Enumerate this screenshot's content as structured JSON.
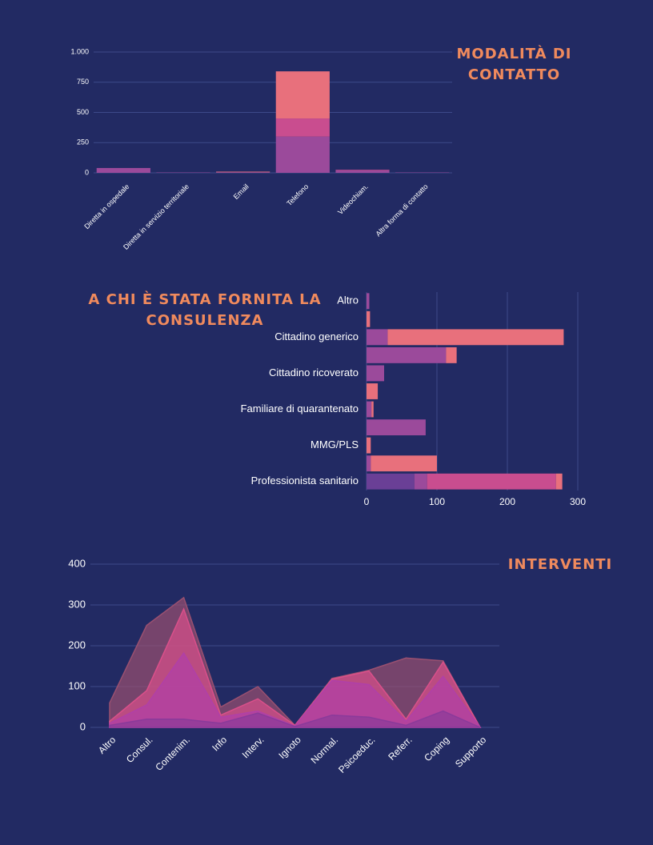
{
  "chart_data": [
    {
      "type": "bar",
      "title": "MODALITÀ DI CONTATTO",
      "categories": [
        "Diretta in ospedale",
        "Diretta in servizio territoriale",
        "Email",
        "Telefono",
        "Videochiam.",
        "Altra forma di contatto"
      ],
      "series": [
        {
          "color": "#9b4a9b",
          "values": [
            40,
            3,
            5,
            300,
            20,
            3
          ]
        },
        {
          "color": "#c94d8f",
          "values": [
            0,
            0,
            0,
            150,
            5,
            0
          ]
        },
        {
          "color": "#e8707c",
          "values": [
            0,
            0,
            5,
            390,
            0,
            0
          ]
        }
      ],
      "ylim": [
        0,
        1000
      ],
      "yticks": [
        0,
        250,
        500,
        750,
        {
          "value": 1000,
          "label": "1.000"
        }
      ],
      "grid": true
    },
    {
      "type": "hbar",
      "title": "A CHI È STATA FORNITA LA CONSULENZA",
      "categories": [
        "Altro",
        null,
        "Cittadino generico",
        null,
        "Cittadino ricoverato",
        null,
        "Familiare di quarantenato",
        null,
        "MMG/PLS",
        null,
        "Professionista sanitario"
      ],
      "series": [
        {
          "color": "#6a3f96",
          "values": [
            0,
            0,
            0,
            0,
            0,
            0,
            0,
            0,
            0,
            0,
            68
          ]
        },
        {
          "color": "#9b4a9b",
          "values": [
            4,
            0,
            30,
            113,
            25,
            0,
            7,
            84,
            0,
            6,
            18
          ]
        },
        {
          "color": "#c94d8f",
          "values": [
            0,
            0,
            0,
            0,
            0,
            0,
            0,
            0,
            0,
            0,
            183
          ]
        },
        {
          "color": "#e8707c",
          "values": [
            0,
            5,
            250,
            15,
            0,
            16,
            3,
            0,
            6,
            94,
            9
          ]
        }
      ],
      "xlim": [
        0,
        300
      ],
      "xticks": [
        0,
        100,
        200,
        300
      ],
      "grid": true
    },
    {
      "type": "area",
      "title": "INTERVENTI",
      "categories": [
        "Altro",
        "Consul.",
        "Contenim.",
        "Info",
        "Interv.",
        "Ignoto",
        "Normal.",
        "Psicoeduc.",
        "Referr.",
        "Coping",
        "Supporto"
      ],
      "series": [
        {
          "color": "#9a5070",
          "values": [
            60,
            250,
            318,
            50,
            100,
            5,
            120,
            140,
            170,
            163,
            0
          ]
        },
        {
          "color": "#d9508a",
          "values": [
            15,
            90,
            290,
            30,
            70,
            5,
            118,
            138,
            20,
            160,
            0
          ]
        },
        {
          "color": "#b040a8",
          "values": [
            10,
            55,
            182,
            25,
            40,
            3,
            115,
            105,
            15,
            125,
            0
          ]
        },
        {
          "color": "#8a3a9a",
          "values": [
            5,
            20,
            20,
            10,
            35,
            2,
            30,
            25,
            5,
            40,
            0
          ]
        }
      ],
      "ylim": [
        0,
        400
      ],
      "yticks": [
        0,
        100,
        200,
        300,
        400
      ],
      "grid": true
    }
  ]
}
